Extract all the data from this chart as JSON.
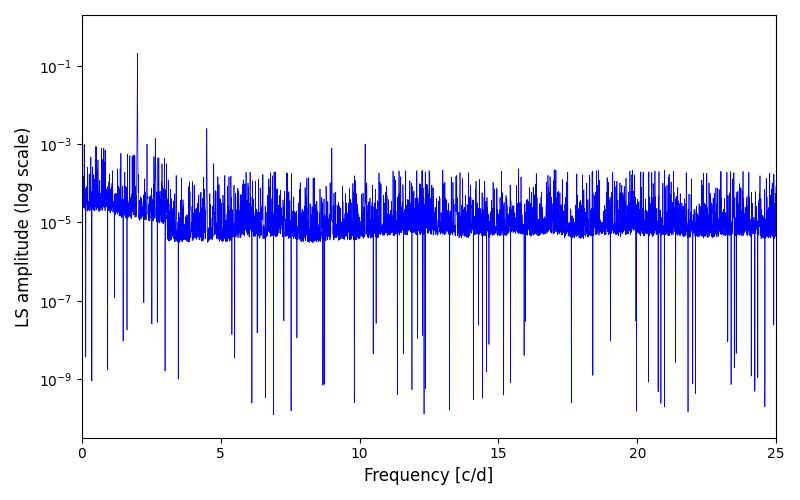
{
  "xlabel": "Frequency [c/d]",
  "ylabel": "LS amplitude (log scale)",
  "xlim": [
    0,
    25
  ],
  "ylim_bottom_log": -10.5,
  "ylim_top_log": 0.3,
  "line_color": "#0000ff",
  "line_width": 0.5,
  "figsize": [
    8.0,
    5.0
  ],
  "dpi": 100,
  "background_color": "#ffffff",
  "seed": 77,
  "n_points": 5000,
  "freq_max": 25.0,
  "yticks": [
    1e-09,
    1e-07,
    1e-05,
    0.001,
    0.1
  ],
  "xticks": [
    0,
    5,
    10,
    15,
    20,
    25
  ]
}
